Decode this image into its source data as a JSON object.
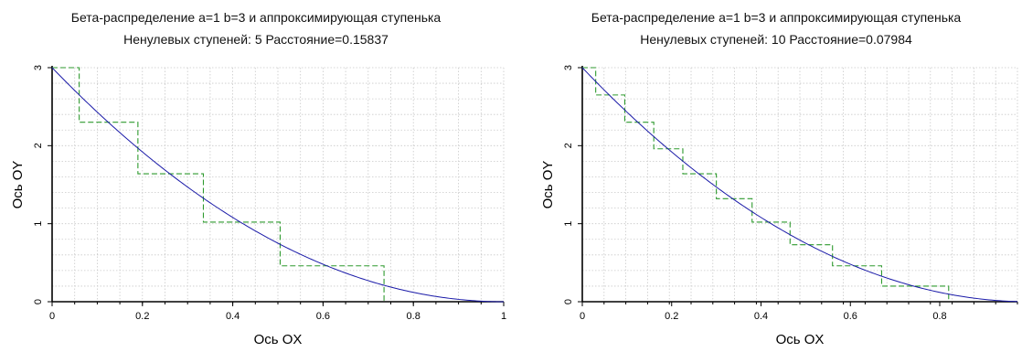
{
  "chart_data": [
    {
      "type": "line",
      "title": "Бета-распределение a=1 b=3  и аппроксимирующая ступенька",
      "subtitle": "Ненулевых ступеней: 5  Расстояние=0.15837",
      "xlabel": "Ось OX",
      "ylabel": "Ось OY",
      "xlim": [
        0,
        1
      ],
      "ylim": [
        0,
        3
      ],
      "xticks": [
        "0",
        "0.2",
        "0.4",
        "0.6",
        "0.8",
        "1"
      ],
      "yticks": [
        "0",
        "1",
        "2",
        "3"
      ],
      "grid": true,
      "series": [
        {
          "kind": "curve",
          "formula": "3*(1-x)^2",
          "color": "#1a1aa8"
        },
        {
          "kind": "step",
          "color": "#2e9a2e",
          "x": [
            0,
            0.06,
            0.19,
            0.335,
            0.505,
            0.735
          ],
          "y": [
            3.0,
            2.3,
            1.64,
            1.02,
            0.46,
            0
          ]
        }
      ]
    },
    {
      "type": "line",
      "title": "Бета-распределение a=1 b=3  и аппроксимирующая ступенька",
      "subtitle": "Ненулевых ступеней: 10  Расстояние=0.07984",
      "xlabel": "Ось OX",
      "ylabel": "Ось OY",
      "xlim": [
        0,
        1
      ],
      "ylim": [
        0,
        3
      ],
      "xticks": [
        "0",
        "0.2",
        "0.4",
        "0.6",
        "0.8"
      ],
      "yticks": [
        "0",
        "1",
        "2",
        "3"
      ],
      "grid": true,
      "series": [
        {
          "kind": "curve",
          "formula": "3*(1-x)^2",
          "color": "#1a1aa8"
        },
        {
          "kind": "step",
          "color": "#2e9a2e",
          "x": [
            0,
            0.03,
            0.095,
            0.16,
            0.225,
            0.3,
            0.38,
            0.465,
            0.56,
            0.67,
            0.82
          ],
          "y": [
            3.0,
            2.65,
            2.3,
            1.96,
            1.64,
            1.32,
            1.02,
            0.73,
            0.46,
            0.2,
            0
          ]
        }
      ]
    }
  ]
}
